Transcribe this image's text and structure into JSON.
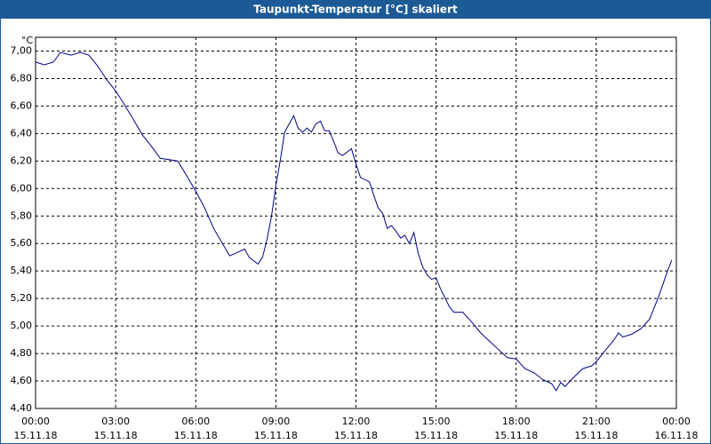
{
  "chart_data": {
    "type": "line",
    "title": "Taupunkt-Temperatur [°C] skaliert",
    "y_unit": "°C",
    "grid": true,
    "xlim": [
      0,
      24
    ],
    "ylim": [
      4.4,
      7.1
    ],
    "xticks": [
      {
        "value": 0,
        "label": "00:00"
      },
      {
        "value": 3,
        "label": "03:00"
      },
      {
        "value": 6,
        "label": "06:00"
      },
      {
        "value": 9,
        "label": "09:00"
      },
      {
        "value": 12,
        "label": "12:00"
      },
      {
        "value": 15,
        "label": "15:00"
      },
      {
        "value": 18,
        "label": "18:00"
      },
      {
        "value": 21,
        "label": "21:00"
      },
      {
        "value": 24,
        "label": "00:00"
      }
    ],
    "xtick_dates": [
      "15.11.18",
      "15.11.18",
      "15.11.18",
      "15.11.18",
      "15.11.18",
      "15.11.18",
      "15.11.18",
      "15.11.18",
      "16.11.18"
    ],
    "yticks": [
      {
        "value": 4.4,
        "label": "4,40"
      },
      {
        "value": 4.6,
        "label": "4,60"
      },
      {
        "value": 4.8,
        "label": "4,80"
      },
      {
        "value": 5.0,
        "label": "5,00"
      },
      {
        "value": 5.2,
        "label": "5,20"
      },
      {
        "value": 5.4,
        "label": "5,40"
      },
      {
        "value": 5.6,
        "label": "5,60"
      },
      {
        "value": 5.8,
        "label": "5,80"
      },
      {
        "value": 6.0,
        "label": "6,00"
      },
      {
        "value": 6.2,
        "label": "6,20"
      },
      {
        "value": 6.4,
        "label": "6,40"
      },
      {
        "value": 6.6,
        "label": "6,60"
      },
      {
        "value": 6.8,
        "label": "6,80"
      },
      {
        "value": 7.0,
        "label": "7,00"
      }
    ],
    "series": [
      {
        "color": "#00008b",
        "x": [
          0,
          0.33,
          0.67,
          0.93,
          1.33,
          1.67,
          2.0,
          2.33,
          2.67,
          3.0,
          3.33,
          3.67,
          4.0,
          4.33,
          4.67,
          5.0,
          5.33,
          5.67,
          6.0,
          6.33,
          6.67,
          7.0,
          7.27,
          7.5,
          7.83,
          8.0,
          8.33,
          8.5,
          8.67,
          8.83,
          9.0,
          9.17,
          9.33,
          9.5,
          9.67,
          9.83,
          10.0,
          10.17,
          10.33,
          10.5,
          10.67,
          10.83,
          11.0,
          11.17,
          11.33,
          11.5,
          11.83,
          12.0,
          12.17,
          12.5,
          12.67,
          12.83,
          13.0,
          13.17,
          13.33,
          13.5,
          13.67,
          13.83,
          14.0,
          14.17,
          14.33,
          14.5,
          14.67,
          14.83,
          15.0,
          15.17,
          15.5,
          15.67,
          16.0,
          16.33,
          16.67,
          17.0,
          17.33,
          17.67,
          18.0,
          18.33,
          18.67,
          19.0,
          19.33,
          19.5,
          19.67,
          19.83,
          20.17,
          20.5,
          20.83,
          21.0,
          21.33,
          21.67,
          21.83,
          22.0,
          22.33,
          22.67,
          23.0,
          23.33,
          23.67,
          23.83
        ],
        "values": [
          6.92,
          6.9,
          6.92,
          6.99,
          6.97,
          6.99,
          6.97,
          6.89,
          6.79,
          6.71,
          6.61,
          6.5,
          6.39,
          6.31,
          6.22,
          6.21,
          6.2,
          6.09,
          5.98,
          5.86,
          5.71,
          5.6,
          5.51,
          5.53,
          5.56,
          5.5,
          5.45,
          5.5,
          5.63,
          5.79,
          6.02,
          6.21,
          6.41,
          6.47,
          6.53,
          6.44,
          6.41,
          6.44,
          6.41,
          6.47,
          6.49,
          6.42,
          6.42,
          6.34,
          6.26,
          6.24,
          6.29,
          6.18,
          6.08,
          6.05,
          5.95,
          5.86,
          5.82,
          5.71,
          5.73,
          5.69,
          5.64,
          5.66,
          5.6,
          5.68,
          5.53,
          5.43,
          5.37,
          5.34,
          5.35,
          5.27,
          5.14,
          5.1,
          5.1,
          5.03,
          4.95,
          4.89,
          4.83,
          4.77,
          4.76,
          4.69,
          4.66,
          4.61,
          4.58,
          4.53,
          4.59,
          4.56,
          4.63,
          4.69,
          4.71,
          4.74,
          4.82,
          4.9,
          4.95,
          4.92,
          4.94,
          4.98,
          5.05,
          5.21,
          5.4,
          5.48
        ]
      }
    ]
  }
}
